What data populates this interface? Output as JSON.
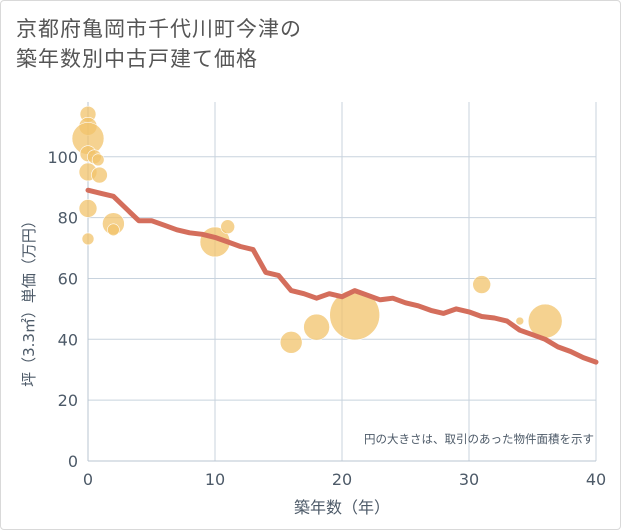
{
  "title_line1": "京都府亀岡市千代川町今津の",
  "title_line2": "築年数別中古戸建て価格",
  "chart_data": {
    "type": "scatter",
    "title": "京都府亀岡市千代川町今津の築年数別中古戸建て価格",
    "xlabel": "築年数（年）",
    "ylabel": "坪（3.3㎡）単価（万円）",
    "xlim": [
      0,
      40
    ],
    "ylim": [
      0,
      118
    ],
    "xticks": [
      0,
      10,
      20,
      30,
      40
    ],
    "yticks": [
      0,
      20,
      40,
      60,
      80,
      100
    ],
    "grid": true,
    "note": "円の大きさは、取引のあった物件面積を示す",
    "colors": {
      "bubble": "#f2c36b",
      "line": "#d46e5c",
      "grid": "#c8d3de",
      "axis_text": "#4d5a68"
    },
    "bubbles": [
      {
        "x": 0,
        "y": 114,
        "r": 8
      },
      {
        "x": 0,
        "y": 110,
        "r": 9
      },
      {
        "x": 0,
        "y": 106,
        "r": 16
      },
      {
        "x": 0,
        "y": 101,
        "r": 8
      },
      {
        "x": 0.5,
        "y": 100,
        "r": 7
      },
      {
        "x": 0.8,
        "y": 99,
        "r": 6
      },
      {
        "x": 0,
        "y": 95,
        "r": 9
      },
      {
        "x": 0.9,
        "y": 94,
        "r": 8
      },
      {
        "x": 0,
        "y": 83,
        "r": 9
      },
      {
        "x": 2,
        "y": 78,
        "r": 11
      },
      {
        "x": 2,
        "y": 76,
        "r": 6
      },
      {
        "x": 0,
        "y": 73,
        "r": 6
      },
      {
        "x": 10,
        "y": 72,
        "r": 15
      },
      {
        "x": 11,
        "y": 77,
        "r": 7
      },
      {
        "x": 16,
        "y": 39,
        "r": 11
      },
      {
        "x": 18,
        "y": 44,
        "r": 13
      },
      {
        "x": 21,
        "y": 48,
        "r": 25
      },
      {
        "x": 31,
        "y": 58,
        "r": 9
      },
      {
        "x": 34,
        "y": 46,
        "r": 4
      },
      {
        "x": 36,
        "y": 46,
        "r": 17
      }
    ],
    "trend": {
      "x": [
        0,
        1,
        2,
        3,
        4,
        5,
        6,
        7,
        8,
        9,
        10,
        11,
        12,
        13,
        14,
        15,
        16,
        17,
        18,
        19,
        20,
        21,
        22,
        23,
        24,
        25,
        26,
        27,
        28,
        29,
        30,
        31,
        32,
        33,
        34,
        35,
        36,
        37,
        38,
        39,
        40
      ],
      "y": [
        89,
        88,
        87,
        83,
        79,
        79,
        77.5,
        76,
        75,
        74.5,
        73.5,
        72,
        70.5,
        69.5,
        62,
        61,
        56,
        55,
        53.5,
        55,
        54,
        56,
        54.5,
        53,
        53.5,
        52,
        51,
        49.5,
        48.5,
        50,
        49,
        47.5,
        47,
        46,
        43,
        41.5,
        40,
        37.5,
        36,
        34,
        32.5
      ]
    }
  }
}
